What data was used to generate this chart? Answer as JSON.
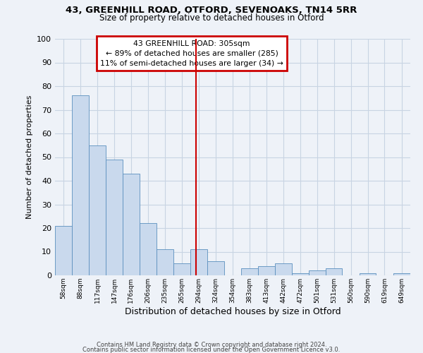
{
  "title1": "43, GREENHILL ROAD, OTFORD, SEVENOAKS, TN14 5RR",
  "title2": "Size of property relative to detached houses in Otford",
  "xlabel": "Distribution of detached houses by size in Otford",
  "ylabel": "Number of detached properties",
  "bin_labels": [
    "58sqm",
    "88sqm",
    "117sqm",
    "147sqm",
    "176sqm",
    "206sqm",
    "235sqm",
    "265sqm",
    "294sqm",
    "324sqm",
    "354sqm",
    "383sqm",
    "413sqm",
    "442sqm",
    "472sqm",
    "501sqm",
    "531sqm",
    "560sqm",
    "590sqm",
    "619sqm",
    "649sqm"
  ],
  "bin_edges": [
    58,
    88,
    117,
    147,
    176,
    206,
    235,
    265,
    294,
    324,
    354,
    383,
    413,
    442,
    472,
    501,
    531,
    560,
    590,
    619,
    649,
    679
  ],
  "bar_heights": [
    21,
    76,
    55,
    49,
    43,
    22,
    11,
    5,
    11,
    6,
    0,
    3,
    4,
    5,
    1,
    2,
    3,
    0,
    1,
    0,
    1
  ],
  "bar_color": "#c9d9ed",
  "bar_edge_color": "#5b8fbe",
  "grid_color": "#c8d4e3",
  "background_color": "#eef2f8",
  "red_line_x": 305,
  "annotation_title": "43 GREENHILL ROAD: 305sqm",
  "annotation_line1": "← 89% of detached houses are smaller (285)",
  "annotation_line2": "11% of semi-detached houses are larger (34) →",
  "annotation_box_color": "#cc0000",
  "ylim": [
    0,
    100
  ],
  "yticks": [
    0,
    10,
    20,
    30,
    40,
    50,
    60,
    70,
    80,
    90,
    100
  ],
  "footer1": "Contains HM Land Registry data © Crown copyright and database right 2024.",
  "footer2": "Contains public sector information licensed under the Open Government Licence v3.0."
}
